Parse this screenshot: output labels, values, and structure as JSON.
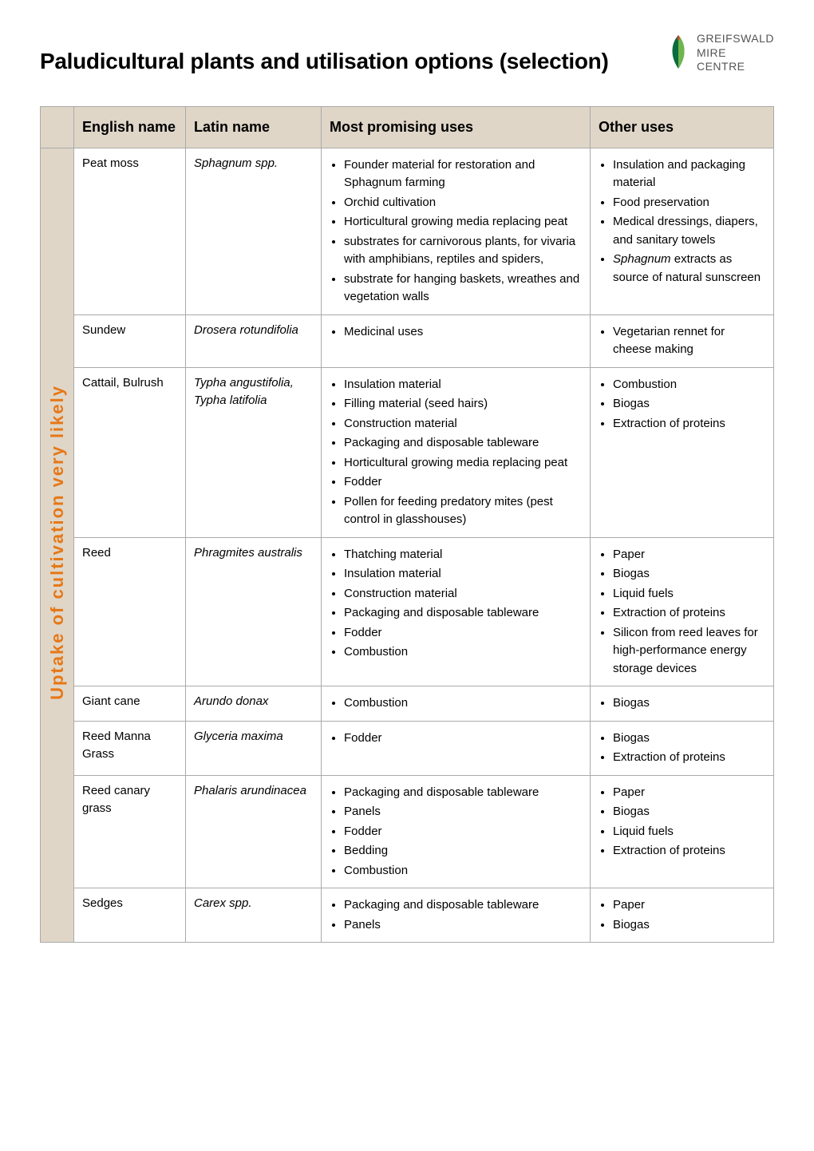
{
  "page": {
    "title": "Paludicultural plants and utilisation options (selection)",
    "logo": {
      "line1": "GREIFSWALD",
      "line2": "MIRE",
      "line3": "CENTRE",
      "leaf_color_dark": "#0a6b3f",
      "leaf_color_light": "#6fb64c",
      "leaf_tip": "#d93a2b"
    },
    "side_label": "Uptake of cultivation very likely",
    "side_label_color": "#e67817",
    "header_bg": "#dfd6c8",
    "border_color": "#aaaaaa"
  },
  "columns": {
    "english": "English name",
    "latin": "Latin name",
    "promising": "Most promising uses",
    "other": "Other uses"
  },
  "rows": [
    {
      "english": "Peat moss",
      "latin_lines": [
        "Sphagnum spp."
      ],
      "promising": [
        "Founder material for restoration and Sphagnum farming",
        "Orchid cultivation",
        "Horticultural growing media replacing peat",
        "substrates for carnivorous plants, for vivaria with amphibians, reptiles and spiders,",
        "substrate for hanging baskets, wreathes and vegetation walls"
      ],
      "other": [
        "Insulation and packaging material",
        "Food preservation",
        "Medical dressings, diapers, and sanitary towels",
        "Sphagnum extracts as source of natural sunscreen"
      ],
      "other_italic_idx": [
        3
      ]
    },
    {
      "english": "Sundew",
      "latin_lines": [
        "Drosera rotundifolia"
      ],
      "promising": [
        "Medicinal uses"
      ],
      "other": [
        "Vegetarian rennet for cheese making"
      ]
    },
    {
      "english": "Cattail, Bulrush",
      "latin_lines": [
        "Typha angustifolia,",
        "Typha latifolia"
      ],
      "promising": [
        "Insulation material",
        "Filling material (seed hairs)",
        "Construction material",
        "Packaging and disposable tableware",
        "Horticultural growing media replacing peat",
        "Fodder",
        "Pollen for feeding predatory mites (pest control in glasshouses)"
      ],
      "other": [
        "Combustion",
        "Biogas",
        "Extraction of proteins"
      ]
    },
    {
      "english": "Reed",
      "latin_lines": [
        "Phragmites australis"
      ],
      "promising": [
        "Thatching material",
        "Insulation material",
        "Construction material",
        "Packaging and disposable tableware",
        "Fodder",
        "Combustion"
      ],
      "other": [
        "Paper",
        "Biogas",
        "Liquid fuels",
        "Extraction of proteins",
        "Silicon from reed leaves for high-performance energy storage devices"
      ]
    },
    {
      "english": "Giant cane",
      "latin_lines": [
        "Arundo donax"
      ],
      "promising": [
        "Combustion"
      ],
      "other": [
        "Biogas"
      ]
    },
    {
      "english": "Reed Manna Grass",
      "latin_lines": [
        "Glyceria maxima"
      ],
      "promising": [
        "Fodder"
      ],
      "other": [
        "Biogas",
        "Extraction of proteins"
      ]
    },
    {
      "english": "Reed canary grass",
      "latin_lines": [
        "Phalaris arundinacea"
      ],
      "promising": [
        "Packaging and disposable tableware",
        "Panels",
        "Fodder",
        "Bedding",
        "Combustion"
      ],
      "other": [
        "Paper",
        "Biogas",
        "Liquid fuels",
        "Extraction of proteins"
      ]
    },
    {
      "english": "Sedges",
      "latin_lines": [
        "Carex spp."
      ],
      "promising": [
        "Packaging and disposable tableware",
        "Panels"
      ],
      "other": [
        "Paper",
        "Biogas"
      ]
    }
  ]
}
